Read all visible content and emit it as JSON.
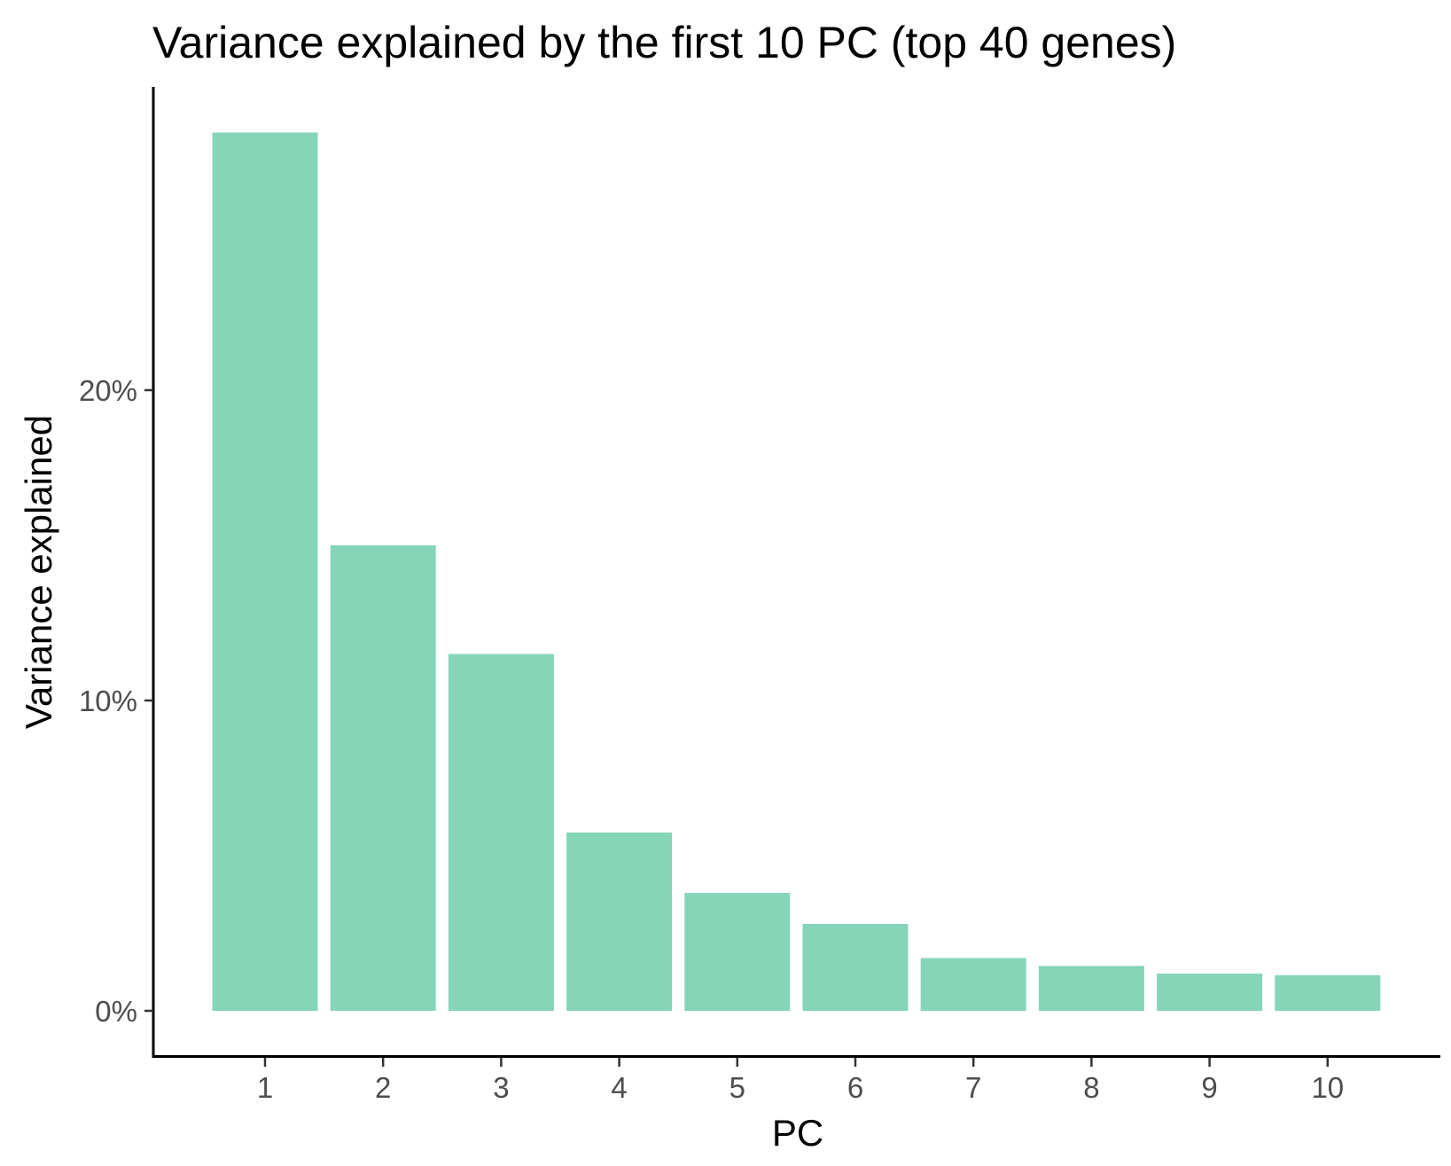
{
  "chart_data": {
    "type": "bar",
    "title": "Variance explained by the first 10 PC (top 40 genes)",
    "xlabel": "PC",
    "ylabel": "Variance explained",
    "categories": [
      "1",
      "2",
      "3",
      "4",
      "5",
      "6",
      "7",
      "8",
      "9",
      "10"
    ],
    "values": [
      28.3,
      15.0,
      11.5,
      5.75,
      3.8,
      2.8,
      1.7,
      1.45,
      1.2,
      1.15
    ],
    "y_ticks": [
      0,
      10,
      20
    ],
    "y_tick_labels": [
      "0%",
      "10%",
      "20%"
    ],
    "ylim": [
      -1.4,
      30.0
    ],
    "bar_color": "#85d6b9",
    "grid": false,
    "legend": "none"
  }
}
